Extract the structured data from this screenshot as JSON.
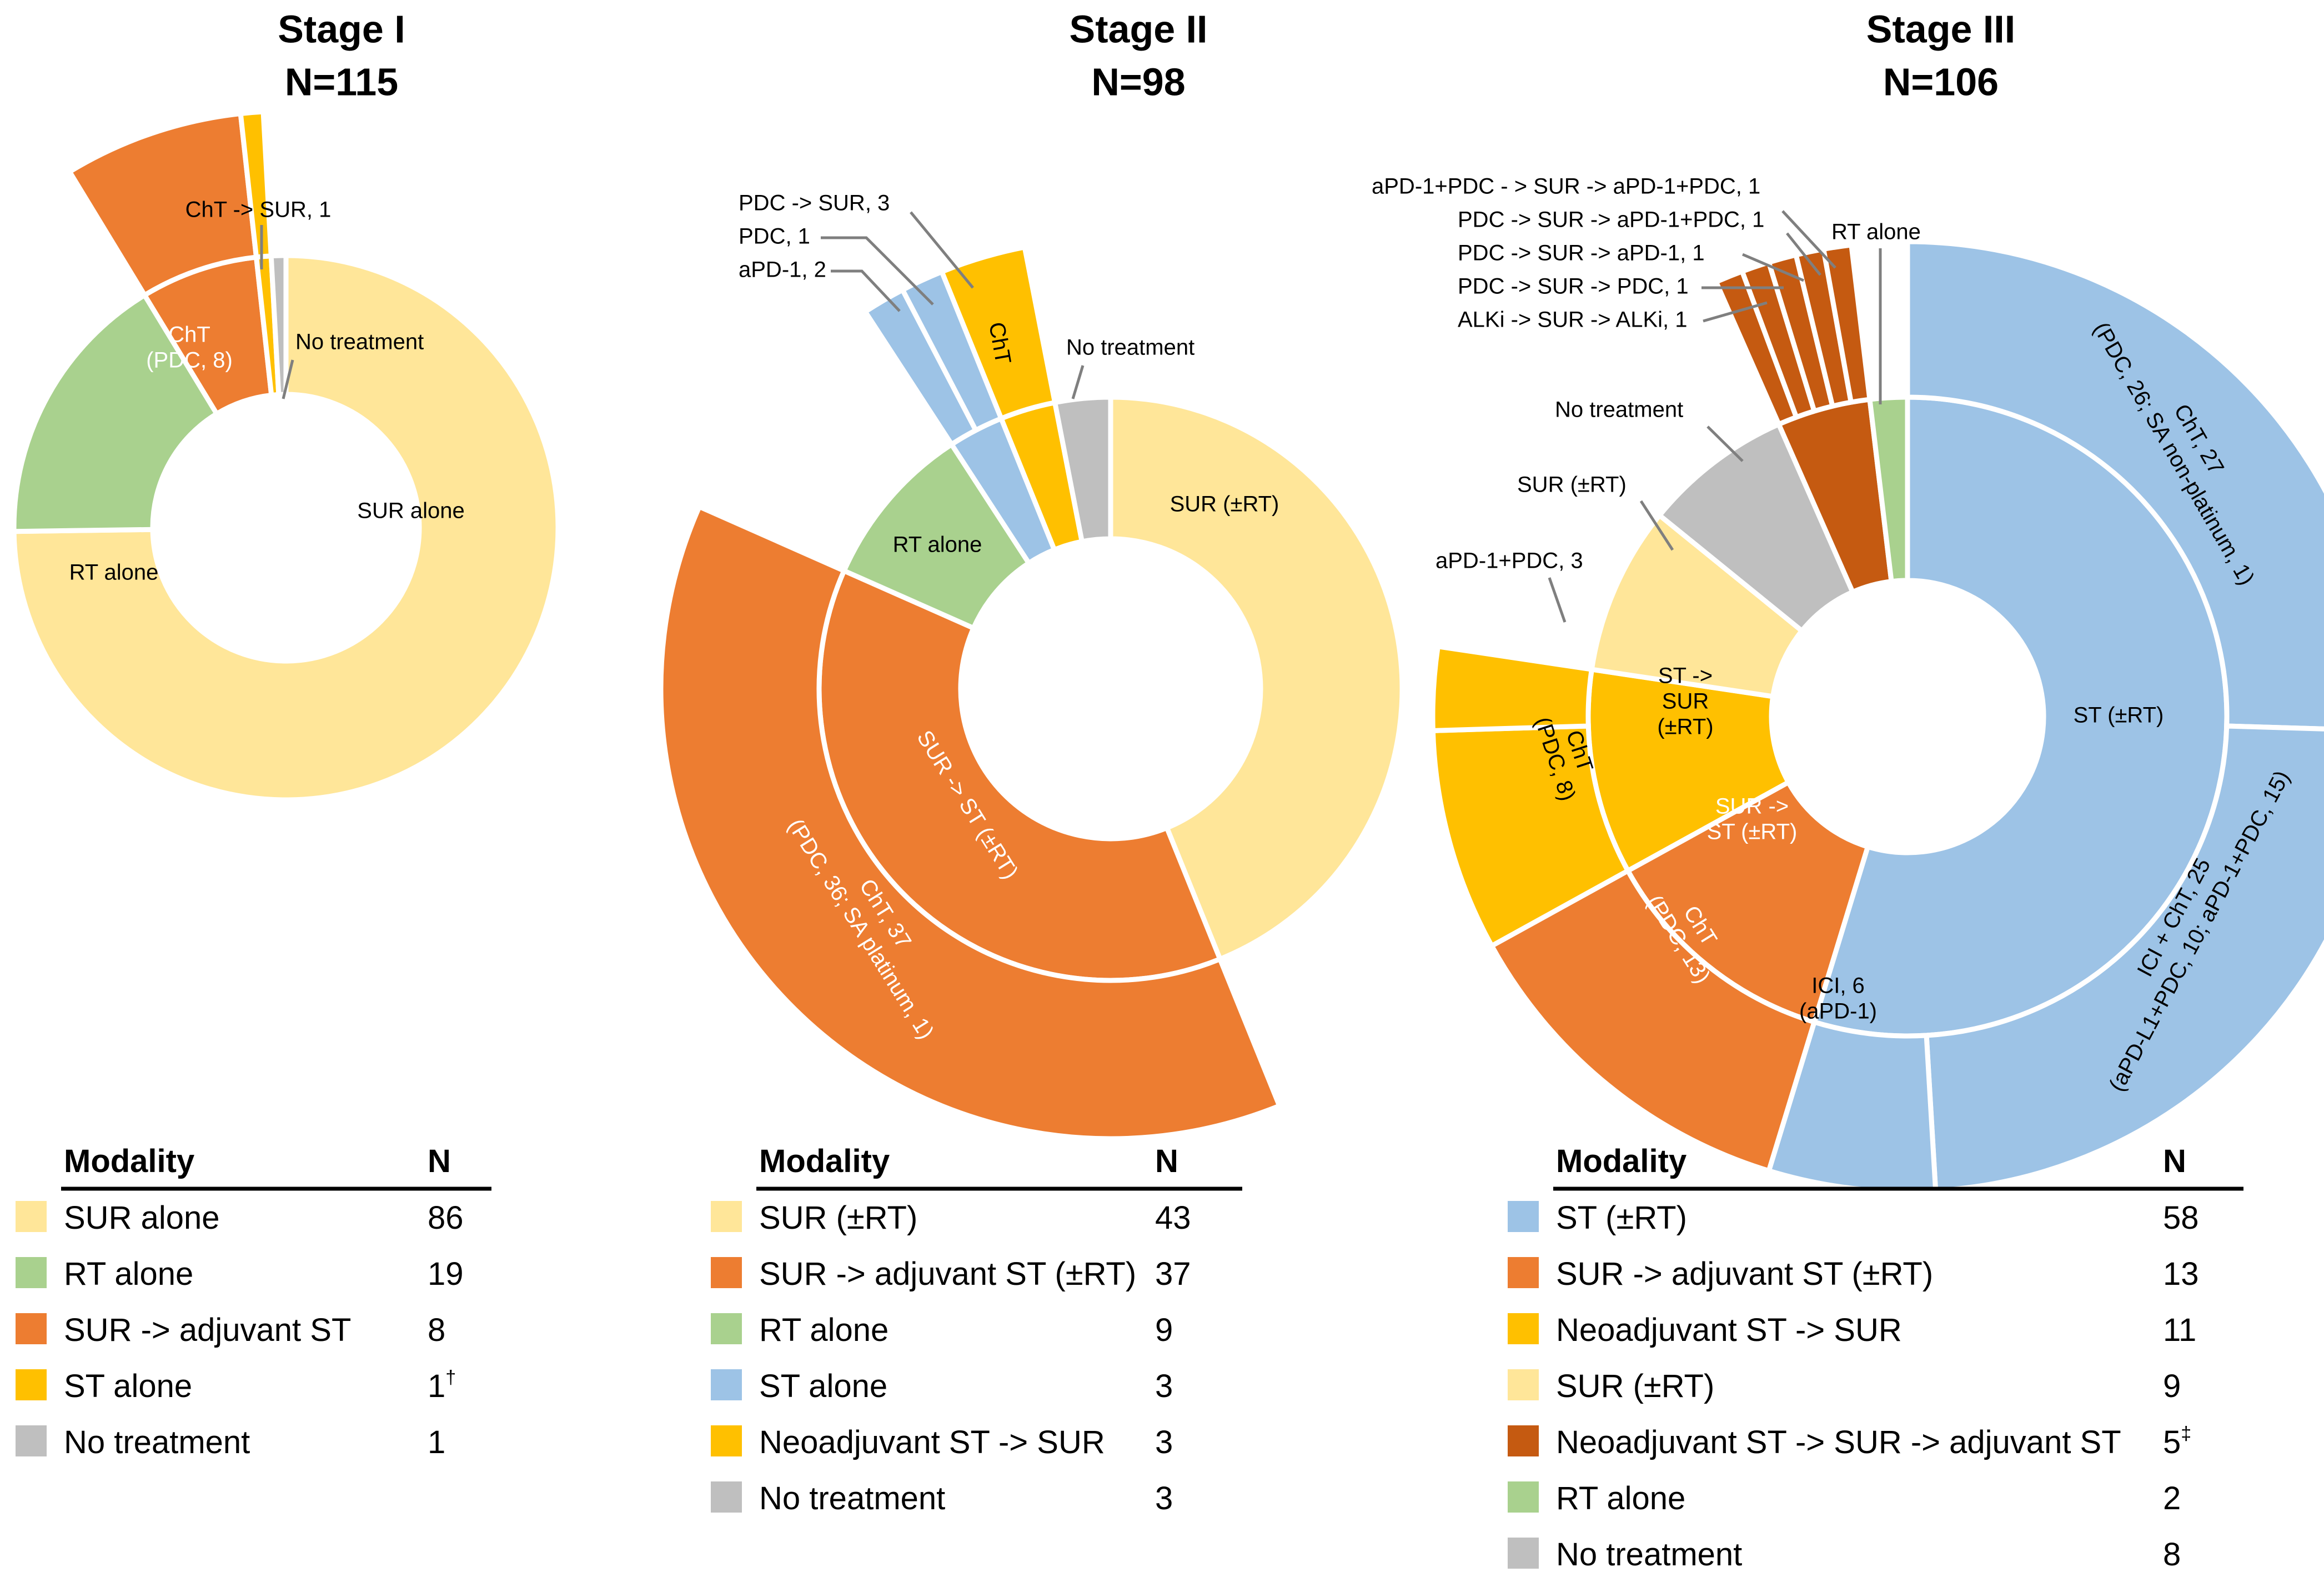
{
  "chart_data": [
    {
      "type": "pie",
      "title": "Stage I",
      "subtitle": "N=115",
      "inner_ring": [
        {
          "label": "SUR alone",
          "value": 86,
          "color": "#FFE699"
        },
        {
          "label": "RT alone",
          "value": 19,
          "color": "#A9D18E"
        },
        {
          "label": "SUR->\nST",
          "value": 8,
          "color": "#ED7D31"
        },
        {
          "label": "",
          "value": 1,
          "color": "#FFC000"
        },
        {
          "label": "",
          "value": 1,
          "color": "#BFBFBF"
        }
      ],
      "outer_ring": [
        {
          "label": "ChT\n(PDC, 8)",
          "value": 8,
          "color": "#ED7D31"
        },
        {
          "label": "",
          "value": 1,
          "color": "#FFC000"
        }
      ],
      "callouts": [
        "ChT -> SUR, 1",
        "No treatment"
      ],
      "table": {
        "headers": [
          "Modality",
          "N"
        ],
        "rows": [
          {
            "color": "#FFE699",
            "modality": "SUR alone",
            "n": "86",
            "sup": ""
          },
          {
            "color": "#A9D18E",
            "modality": "RT alone",
            "n": "19",
            "sup": ""
          },
          {
            "color": "#ED7D31",
            "modality": "SUR -> adjuvant ST",
            "n": "8",
            "sup": ""
          },
          {
            "color": "#FFC000",
            "modality": "ST alone",
            "n": "1",
            "sup": "†"
          },
          {
            "color": "#BFBFBF",
            "modality": "No treatment",
            "n": "1",
            "sup": ""
          }
        ]
      }
    },
    {
      "type": "pie",
      "title": "Stage II",
      "subtitle": "N=98",
      "inner_ring": [
        {
          "label": "SUR (±RT)",
          "value": 43,
          "color": "#FFE699"
        },
        {
          "label": "SUR -> ST (±RT)",
          "value": 37,
          "color": "#ED7D31"
        },
        {
          "label": "RT alone",
          "value": 9,
          "color": "#A9D18E"
        },
        {
          "label": "",
          "value": 3,
          "color": "#9DC3E6"
        },
        {
          "label": "",
          "value": 3,
          "color": "#FFC000"
        },
        {
          "label": "",
          "value": 3,
          "color": "#BFBFBF"
        }
      ],
      "outer_ring": [
        {
          "label": "ChT, 37\n(PDC, 36; SA platinum, 1)",
          "value": 37,
          "color": "#ED7D31"
        },
        {
          "label": "",
          "value": 2,
          "color": "#9DC3E6"
        },
        {
          "label": "",
          "value": 1,
          "color": "#9DC3E6"
        },
        {
          "label": "ChT",
          "value": 3,
          "color": "#FFC000"
        }
      ],
      "callouts": [
        "PDC -> SUR, 3",
        "PDC, 1",
        "aPD-1, 2",
        "No treatment"
      ],
      "table": {
        "headers": [
          "Modality",
          "N"
        ],
        "rows": [
          {
            "color": "#FFE699",
            "modality": "SUR (±RT)",
            "n": "43",
            "sup": ""
          },
          {
            "color": "#ED7D31",
            "modality": "SUR -> adjuvant ST (±RT)",
            "n": "37",
            "sup": ""
          },
          {
            "color": "#A9D18E",
            "modality": "RT alone",
            "n": "9",
            "sup": ""
          },
          {
            "color": "#9DC3E6",
            "modality": "ST alone",
            "n": "3",
            "sup": ""
          },
          {
            "color": "#FFC000",
            "modality": "Neoadjuvant ST -> SUR",
            "n": "3",
            "sup": ""
          },
          {
            "color": "#BFBFBF",
            "modality": "No treatment",
            "n": "3",
            "sup": ""
          }
        ]
      }
    },
    {
      "type": "pie",
      "title": "Stage III",
      "subtitle": "N=106",
      "inner_ring": [
        {
          "label": "ST (±RT)",
          "value": 58,
          "color": "#9DC3E6"
        },
        {
          "label": "SUR ->\nST (±RT)",
          "value": 13,
          "color": "#ED7D31"
        },
        {
          "label": "ST ->\nSUR\n(±RT)",
          "value": 11,
          "color": "#FFC000"
        },
        {
          "label": "",
          "value": 9,
          "color": "#FFE699"
        },
        {
          "label": "",
          "value": 8,
          "color": "#BFBFBF"
        },
        {
          "label": "",
          "value": 5,
          "color": "#C55A11"
        },
        {
          "label": "",
          "value": 2,
          "color": "#A9D18E"
        }
      ],
      "outer_ring": [
        {
          "label": "ChT, 27\n(PDC, 26; SA non-platinum, 1)",
          "value": 27,
          "color": "#9DC3E6"
        },
        {
          "label": "ICI + ChT, 25\n(aPD-L1+PDC, 10; aPD-1+PDC, 15)",
          "value": 25,
          "color": "#9DC3E6"
        },
        {
          "label": "ICI, 6\n(aPD-1)",
          "value": 6,
          "color": "#9DC3E6"
        },
        {
          "label": "ChT\n(PDC, 13)",
          "value": 13,
          "color": "#ED7D31"
        },
        {
          "label": "ChT\n(PDC, 8)",
          "value": 8,
          "color": "#FFC000"
        },
        {
          "label": "",
          "value": 3,
          "color": "#FFC000"
        },
        {
          "label": "",
          "value": 1,
          "color": "#C55A11"
        },
        {
          "label": "",
          "value": 1,
          "color": "#C55A11"
        },
        {
          "label": "",
          "value": 1,
          "color": "#C55A11"
        },
        {
          "label": "",
          "value": 1,
          "color": "#C55A11"
        },
        {
          "label": "",
          "value": 1,
          "color": "#C55A11"
        }
      ],
      "callouts": [
        "aPD-1+PDC - > SUR -> aPD-1+PDC, 1",
        "PDC -> SUR -> aPD-1+PDC, 1",
        "PDC -> SUR -> aPD-1, 1",
        "PDC -> SUR -> PDC, 1",
        "ALKi -> SUR -> ALKi, 1",
        "RT alone",
        "No treatment",
        "SUR (±RT)",
        "aPD-1+PDC, 3"
      ],
      "table": {
        "headers": [
          "Modality",
          "N"
        ],
        "rows": [
          {
            "color": "#9DC3E6",
            "modality": "ST (±RT)",
            "n": "58",
            "sup": ""
          },
          {
            "color": "#ED7D31",
            "modality": "SUR -> adjuvant ST (±RT)",
            "n": "13",
            "sup": ""
          },
          {
            "color": "#FFC000",
            "modality": "Neoadjuvant ST -> SUR",
            "n": "11",
            "sup": ""
          },
          {
            "color": "#FFE699",
            "modality": "SUR (±RT)",
            "n": "9",
            "sup": ""
          },
          {
            "color": "#C55A11",
            "modality": "Neoadjuvant ST -> SUR -> adjuvant ST",
            "n": "5",
            "sup": "‡"
          },
          {
            "color": "#A9D18E",
            "modality": "RT alone",
            "n": "2",
            "sup": ""
          },
          {
            "color": "#BFBFBF",
            "modality": "No treatment",
            "n": "8",
            "sup": ""
          }
        ]
      }
    }
  ]
}
